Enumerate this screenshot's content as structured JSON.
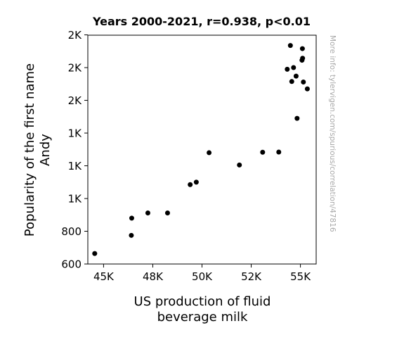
{
  "chart_data": {
    "type": "scatter",
    "title": "Years 2000-2021, r=0.938, p<0.01",
    "xlabel_lines": [
      "US production of fluid",
      "beverage milk"
    ],
    "ylabel_lines": [
      "Popularity of the first name",
      "Andy"
    ],
    "xlim": [
      44200,
      55800
    ],
    "ylim": [
      600,
      1998
    ],
    "x_ticks": [
      {
        "value": 45000,
        "label": "45K"
      },
      {
        "value": 47500,
        "label": "48K"
      },
      {
        "value": 50000,
        "label": "50K"
      },
      {
        "value": 52500,
        "label": "52K"
      },
      {
        "value": 55000,
        "label": "55K"
      }
    ],
    "y_ticks": [
      {
        "value": 600,
        "label": "600"
      },
      {
        "value": 800,
        "label": "800"
      },
      {
        "value": 1000,
        "label": "1K"
      },
      {
        "value": 1200,
        "label": "1K"
      },
      {
        "value": 1400,
        "label": "1K"
      },
      {
        "value": 1600,
        "label": "2K"
      },
      {
        "value": 1800,
        "label": "2K"
      },
      {
        "value": 2000,
        "label": "2K"
      }
    ],
    "point_color": "#000000",
    "points": [
      {
        "x": 44550,
        "y": 664
      },
      {
        "x": 46410,
        "y": 775
      },
      {
        "x": 46430,
        "y": 880
      },
      {
        "x": 47250,
        "y": 912
      },
      {
        "x": 48250,
        "y": 912
      },
      {
        "x": 49400,
        "y": 1085
      },
      {
        "x": 49710,
        "y": 1100
      },
      {
        "x": 50360,
        "y": 1280
      },
      {
        "x": 51900,
        "y": 1205
      },
      {
        "x": 53080,
        "y": 1283
      },
      {
        "x": 53900,
        "y": 1284
      },
      {
        "x": 54330,
        "y": 1790
      },
      {
        "x": 54490,
        "y": 1935
      },
      {
        "x": 54560,
        "y": 1715
      },
      {
        "x": 54650,
        "y": 1800
      },
      {
        "x": 54780,
        "y": 1748
      },
      {
        "x": 54830,
        "y": 1490
      },
      {
        "x": 55080,
        "y": 1845
      },
      {
        "x": 55100,
        "y": 1916
      },
      {
        "x": 55110,
        "y": 1857
      },
      {
        "x": 55150,
        "y": 1712
      },
      {
        "x": 55350,
        "y": 1670
      }
    ]
  },
  "watermark": "More info: tylervigen.com/spurious/correlation/47816"
}
